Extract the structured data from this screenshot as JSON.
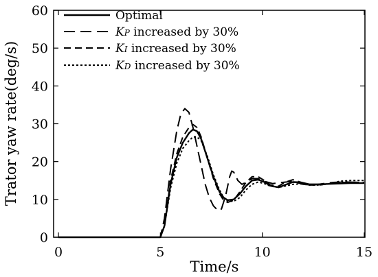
{
  "chart_data": {
    "type": "line",
    "title": "",
    "xlabel": "Time/s",
    "ylabel": "Trator yaw rate(deg/s)",
    "xlim": [
      0,
      15
    ],
    "ylim": [
      0,
      60
    ],
    "xticks": [
      0,
      5,
      10,
      15
    ],
    "yticks": [
      0,
      10,
      20,
      30,
      40,
      50,
      60
    ],
    "xtick_labels": [
      "0",
      "5",
      "10",
      "15"
    ],
    "ytick_labels": [
      "0",
      "10",
      "20",
      "30",
      "40",
      "50",
      "60"
    ],
    "grid": false,
    "legend_position": "top-left",
    "series": [
      {
        "name": "Optimal",
        "legend_main": "Optimal",
        "legend_sub": "",
        "legend_rest": "",
        "style": "solid",
        "color": "#000000",
        "x": [
          0,
          5.0,
          5.2,
          5.5,
          5.8,
          6.1,
          6.4,
          6.6,
          6.8,
          7.0,
          7.3,
          7.6,
          7.9,
          8.1,
          8.3,
          8.6,
          8.9,
          9.2,
          9.5,
          9.8,
          10.1,
          10.4,
          10.8,
          11.1,
          11.5,
          11.9,
          12.3,
          12.8,
          13.3,
          13.8,
          14.3,
          15.0
        ],
        "y": [
          0,
          0,
          3,
          14,
          21,
          25,
          27.5,
          28.5,
          28,
          26,
          21,
          16,
          12,
          10.5,
          9.8,
          10,
          11.5,
          13.5,
          15,
          15.2,
          14.6,
          13.6,
          13.2,
          13.8,
          14.6,
          14.5,
          14,
          14,
          14.1,
          14.2,
          14.3,
          14.3
        ]
      },
      {
        "name": "KP increased by 30%",
        "legend_main": "K",
        "legend_sub": "P",
        "legend_rest": " increased by 30%",
        "style": "long-dash",
        "color": "#000000",
        "x": [
          0,
          5.0,
          5.2,
          5.5,
          5.8,
          6.0,
          6.2,
          6.4,
          6.6,
          6.8,
          7.0,
          7.2,
          7.4,
          7.6,
          7.8,
          7.9,
          8.0,
          8.2,
          8.4,
          8.5,
          8.6,
          8.8,
          9.0,
          9.2,
          9.5,
          9.8,
          10.1,
          10.5,
          11.0,
          11.5,
          12.0,
          12.5,
          13.0,
          13.5,
          14.0,
          15.0
        ],
        "y": [
          0,
          0,
          5,
          18,
          28,
          32.5,
          34,
          33,
          29,
          24,
          19,
          14,
          10.5,
          8.3,
          7.2,
          7,
          7.5,
          11,
          16,
          17.5,
          17.2,
          15,
          14,
          14.5,
          15.5,
          15.5,
          14.8,
          14.2,
          14.5,
          14.8,
          14,
          13.8,
          14.2,
          14.5,
          14.6,
          14.5
        ]
      },
      {
        "name": "KI increased by 30%",
        "legend_main": "K",
        "legend_sub": "I",
        "legend_rest": " increased by 30%",
        "style": "dash",
        "color": "#000000",
        "x": [
          0,
          5.0,
          5.2,
          5.5,
          5.8,
          6.1,
          6.4,
          6.6,
          6.8,
          7.0,
          7.3,
          7.6,
          7.9,
          8.1,
          8.3,
          8.6,
          8.9,
          9.2,
          9.5,
          9.8,
          10.1,
          10.4,
          10.8,
          11.1,
          11.5,
          11.9,
          12.3,
          12.8,
          13.3,
          13.8,
          14.3,
          15.0
        ],
        "y": [
          0,
          0,
          3,
          15,
          22,
          26.5,
          29,
          29.8,
          29,
          26.5,
          21,
          15.5,
          11.5,
          9.8,
          9.2,
          9.8,
          12,
          14.5,
          16,
          16,
          15,
          13.8,
          13.5,
          14.5,
          15.2,
          14.5,
          13.8,
          13.8,
          14.2,
          14.5,
          14.5,
          14.5
        ]
      },
      {
        "name": "KD increased by 30%",
        "legend_main": "K",
        "legend_sub": "D",
        "legend_rest": " increased by 30%",
        "style": "dotted",
        "color": "#000000",
        "x": [
          0,
          5.0,
          5.2,
          5.5,
          5.8,
          6.1,
          6.4,
          6.6,
          6.8,
          7.0,
          7.3,
          7.6,
          7.9,
          8.1,
          8.3,
          8.6,
          8.9,
          9.2,
          9.5,
          9.8,
          10.1,
          10.4,
          10.8,
          11.1,
          11.5,
          11.9,
          12.3,
          12.8,
          13.3,
          13.8,
          14.3,
          15.0
        ],
        "y": [
          0,
          0,
          3,
          13,
          19.5,
          23.5,
          25.5,
          26.5,
          26.5,
          25.5,
          21.5,
          16.5,
          12.5,
          10.5,
          9.5,
          9.5,
          10.5,
          12.5,
          14,
          14.6,
          14.2,
          13.5,
          13.2,
          13.5,
          14,
          14.1,
          13.8,
          13.8,
          14.2,
          14.8,
          15,
          15
        ]
      }
    ]
  }
}
